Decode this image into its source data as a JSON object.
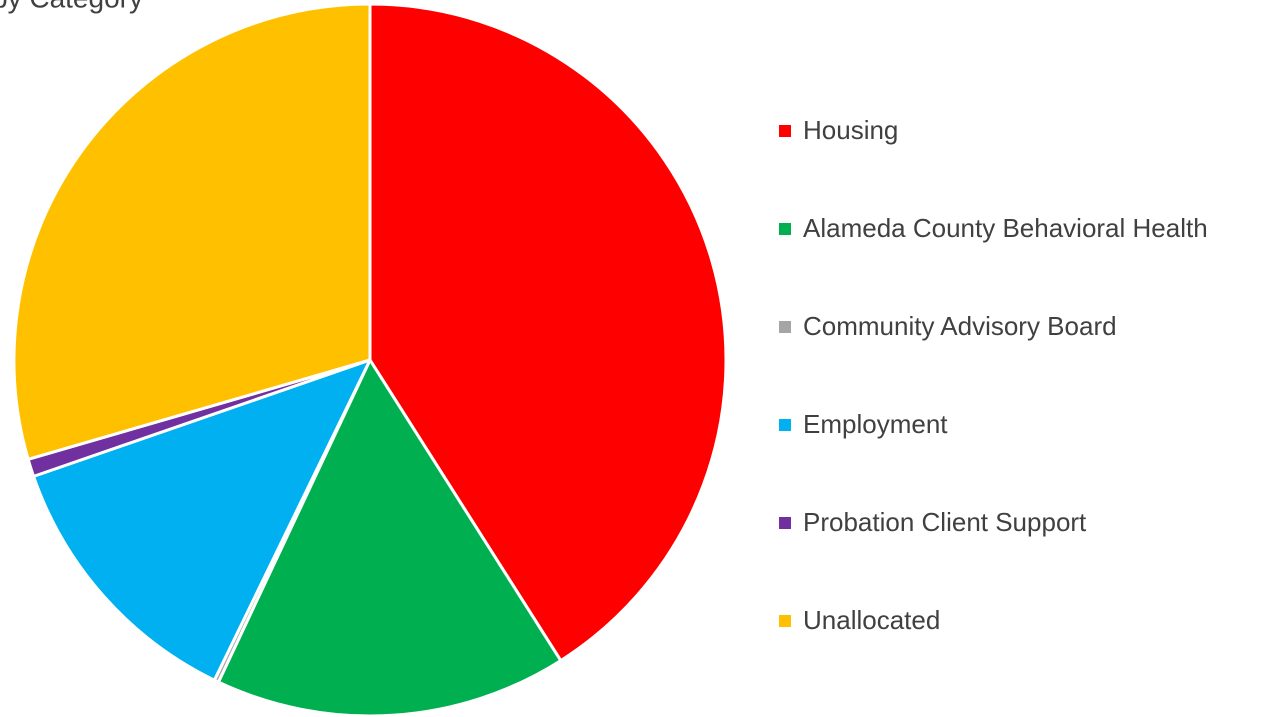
{
  "chart_data": {
    "type": "pie",
    "title": "by Category",
    "categories": [
      "Housing",
      "Alameda County Behavioral Health",
      "Community Advisory Board",
      "Employment",
      "Probation Client Support",
      "Unallocated"
    ],
    "values": [
      41,
      16,
      0.2,
      12.5,
      0.8,
      29.5
    ],
    "colors": [
      "#ff0000",
      "#00b050",
      "#a5a5a5",
      "#00b0f0",
      "#7030a0",
      "#ffc000"
    ],
    "legend": "right"
  }
}
